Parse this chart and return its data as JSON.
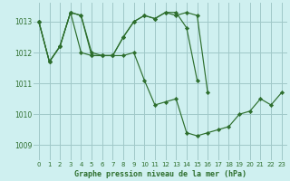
{
  "title": "Graphe pression niveau de la mer (hPa)",
  "bg_color": "#cff0f0",
  "grid_color": "#a0c8c8",
  "line_color": "#2d6e2d",
  "xlim": [
    -0.5,
    23.5
  ],
  "ylim": [
    1008.5,
    1013.6
  ],
  "yticks": [
    1009,
    1010,
    1011,
    1012,
    1013
  ],
  "xticks": [
    0,
    1,
    2,
    3,
    4,
    5,
    6,
    7,
    8,
    9,
    10,
    11,
    12,
    13,
    14,
    15,
    16,
    17,
    18,
    19,
    20,
    21,
    22,
    23
  ],
  "series1_x": [
    0,
    1,
    2,
    3,
    4,
    5,
    6,
    7,
    8,
    9,
    10,
    11,
    12,
    13,
    14,
    15,
    16,
    17,
    18,
    19,
    20,
    21,
    22,
    23
  ],
  "series1_y": [
    1013.0,
    1011.7,
    1012.2,
    1013.3,
    1013.2,
    1011.9,
    1011.9,
    1011.9,
    1011.9,
    1012.0,
    1011.1,
    1010.3,
    1010.4,
    1010.5,
    1009.4,
    1009.3,
    1009.4,
    1009.5,
    1009.6,
    1010.0,
    1010.1,
    1010.5,
    1010.3,
    1010.7
  ],
  "series2_x": [
    0,
    1,
    2,
    3,
    4,
    5,
    6,
    7,
    8,
    9,
    10,
    11,
    12,
    13,
    14,
    15
  ],
  "series2_y": [
    1013.0,
    1011.7,
    1012.2,
    1013.3,
    1013.2,
    1012.0,
    1011.9,
    1011.9,
    1012.5,
    1013.0,
    1013.2,
    1013.1,
    1013.3,
    1013.3,
    1012.8,
    1011.1
  ],
  "series3_x": [
    0,
    1,
    2,
    3,
    4,
    5,
    6,
    7,
    8,
    9,
    10,
    11,
    12,
    13,
    14,
    15,
    16
  ],
  "series3_y": [
    1013.0,
    1011.7,
    1012.2,
    1013.3,
    1012.0,
    1011.9,
    1011.9,
    1011.9,
    1012.5,
    1013.0,
    1013.2,
    1013.1,
    1013.3,
    1013.2,
    1013.3,
    1013.2,
    1010.7
  ]
}
